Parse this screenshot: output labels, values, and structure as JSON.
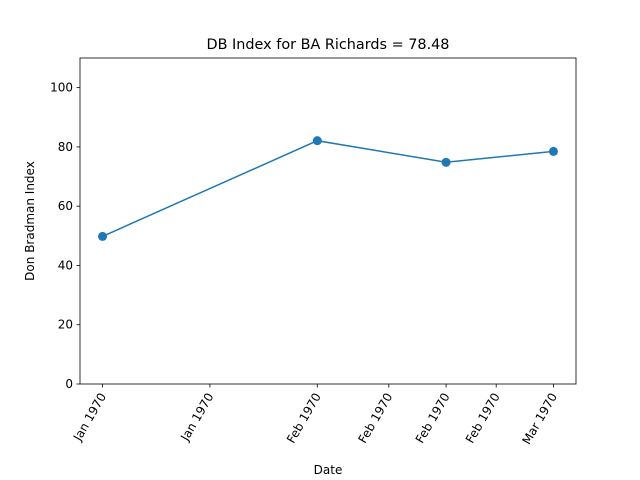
{
  "chart_data": {
    "type": "line",
    "title": "DB Index for BA Richards = 78.48",
    "xlabel": "Date",
    "ylabel": "Don Bradman Index",
    "x": [
      "1970-01-10",
      "1970-02-09",
      "1970-02-27",
      "1970-03-14"
    ],
    "values": [
      49.8,
      82.1,
      74.8,
      78.48
    ],
    "xlim": [
      "1970-01-10",
      "1970-03-14"
    ],
    "ylim": [
      0,
      110
    ],
    "xticks": [
      "1970-01-10",
      "1970-01-25",
      "1970-02-09",
      "1970-02-19",
      "1970-02-27",
      "1970-03-06",
      "1970-03-14"
    ],
    "xtick_labels": [
      "Jan 1970",
      "Jan 1970",
      "Feb 1970",
      "Feb 1970",
      "Feb 1970",
      "Feb 1970",
      "Mar 1970"
    ],
    "yticks": [
      0,
      20,
      40,
      60,
      80,
      100
    ],
    "grid": false,
    "line_color": "#1f77b4"
  }
}
